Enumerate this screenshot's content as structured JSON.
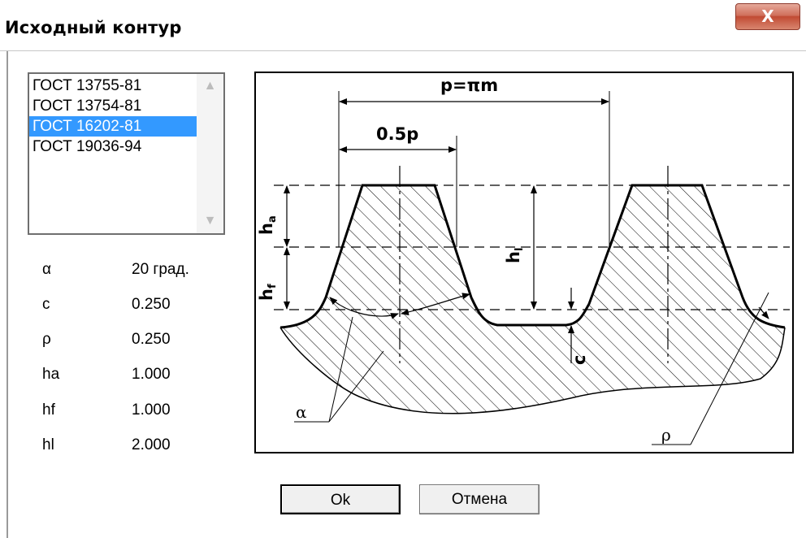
{
  "window": {
    "title": "Исходный контур",
    "close_glyph": "X"
  },
  "standards": {
    "items": [
      "ГОСТ 13755-81",
      "ГОСТ 13754-81",
      "ГОСТ 16202-81",
      "ГОСТ 19036-94"
    ],
    "selected_index": 2,
    "scroll_up_icon": "▲",
    "scroll_down_icon": "▼"
  },
  "params": [
    {
      "name": "α",
      "value": "20 град."
    },
    {
      "name": "c",
      "value": "0.250"
    },
    {
      "name": "ρ",
      "value": "0.250"
    },
    {
      "name": "ha",
      "value": "1.000"
    },
    {
      "name": "hf",
      "value": "1.000"
    },
    {
      "name": "hl",
      "value": "2.000"
    }
  ],
  "diagram": {
    "pitch_label": "p=πm",
    "half_pitch_label": "0.5p",
    "ha_label": "h",
    "ha_sub": "a",
    "hf_label": "h",
    "hf_sub": "f",
    "hl_label": "h",
    "hl_sub": "l",
    "c_label": "c",
    "alpha_label": "α",
    "rho_label": "ρ"
  },
  "buttons": {
    "ok": "Ok",
    "cancel": "Отмена"
  },
  "colors": {
    "selection": "#3399ff",
    "close_button": "#c14a33"
  }
}
